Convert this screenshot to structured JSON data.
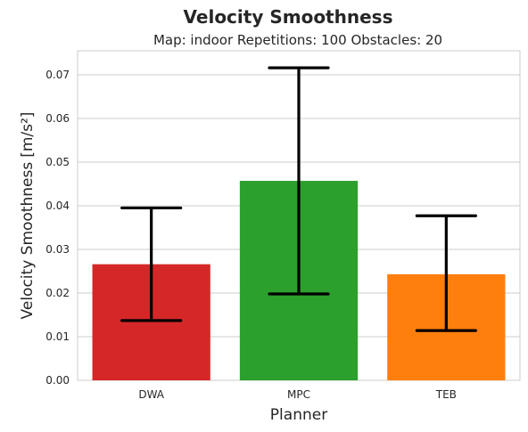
{
  "chart_data": {
    "type": "bar",
    "title": "Velocity Smoothness",
    "subtitle": "Map: indoor Repetitions: 100 Obstacles: 20",
    "xlabel": "Planner",
    "ylabel": "Velocity Smoothness",
    "ylabel_unit": "[m/s²]",
    "categories": [
      "DWA",
      "MPC",
      "TEB"
    ],
    "values": [
      0.0266,
      0.0457,
      0.0243
    ],
    "error_low": [
      0.0137,
      0.0198,
      0.0114
    ],
    "error_high": [
      0.0395,
      0.0716,
      0.0377
    ],
    "colors": [
      "#d62728",
      "#2ca02c",
      "#ff7f0e"
    ],
    "ylim": [
      0,
      0.0755
    ],
    "yticks": [
      "0.00",
      "0.01",
      "0.02",
      "0.03",
      "0.04",
      "0.05",
      "0.06",
      "0.07"
    ],
    "grid": true,
    "grid_color": "#cccccc",
    "error_color": "#000000"
  }
}
